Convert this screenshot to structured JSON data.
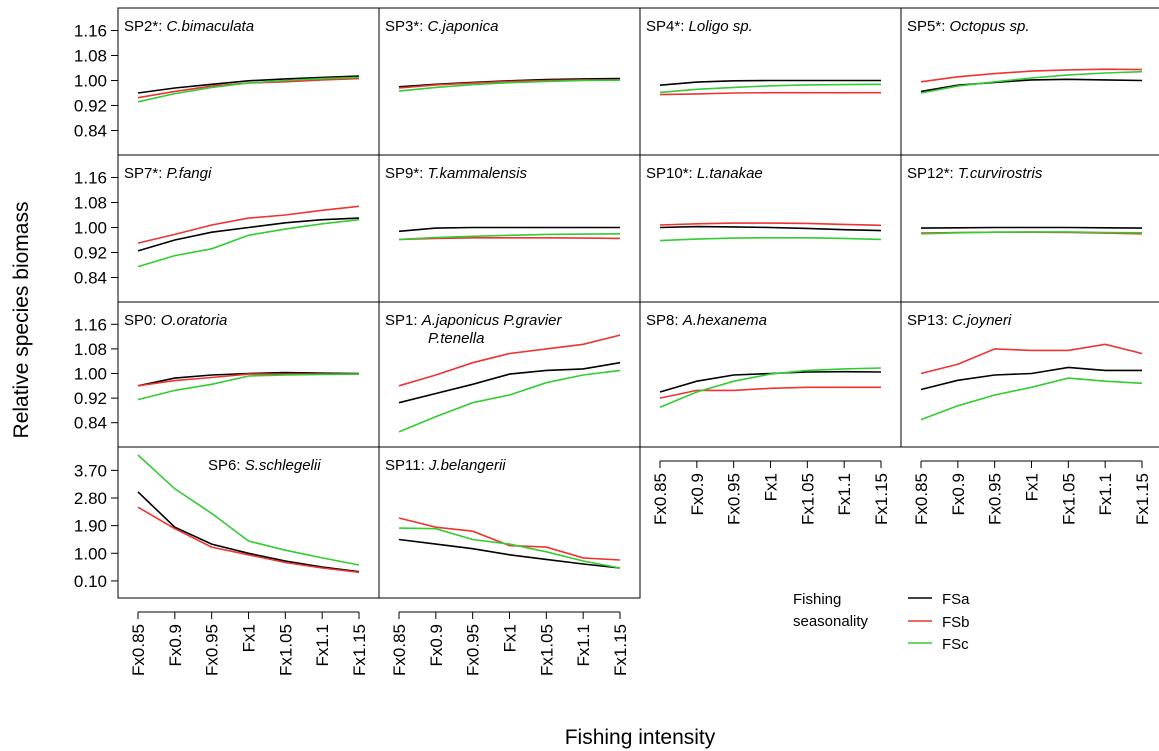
{
  "figure": {
    "ylabel": "Relative species biomass",
    "xlabel": "Fishing intensity",
    "x_categories": [
      "Fx0.85",
      "Fx0.9",
      "Fx0.95",
      "Fx1",
      "Fx1.05",
      "Fx1.1",
      "Fx1.15"
    ],
    "legend": {
      "title_line1": "Fishing",
      "title_line2": "seasonality",
      "items": [
        {
          "name": "FSa",
          "color": "#000000"
        },
        {
          "name": "FSb",
          "color": "#ee3333"
        },
        {
          "name": "FSc",
          "color": "#33cc33"
        }
      ]
    }
  },
  "chart_data": [
    {
      "type": "line",
      "code": "SP2*:",
      "species": "C.bimaculata",
      "ylim": [
        0.8,
        1.2
      ],
      "yticks": [
        "1.16",
        "1.08",
        "1.00",
        "0.92",
        "0.84"
      ],
      "series": [
        {
          "name": "FSa",
          "values": [
            0.96,
            0.976,
            0.988,
            0.999,
            1.005,
            1.01,
            1.014
          ]
        },
        {
          "name": "FSb",
          "values": [
            0.945,
            0.965,
            0.982,
            0.992,
            0.996,
            1.002,
            1.006
          ]
        },
        {
          "name": "FSc",
          "values": [
            0.932,
            0.958,
            0.978,
            0.992,
            1.0,
            1.006,
            1.01
          ]
        }
      ]
    },
    {
      "type": "line",
      "code": "SP3*:",
      "species": "C.japonica",
      "ylim": [
        0.8,
        1.2
      ],
      "yticks": [],
      "series": [
        {
          "name": "FSa",
          "values": [
            0.98,
            0.988,
            0.994,
            0.999,
            1.003,
            1.005,
            1.006
          ]
        },
        {
          "name": "FSb",
          "values": [
            0.976,
            0.986,
            0.992,
            0.997,
            1.0,
            1.002,
            1.002
          ]
        },
        {
          "name": "FSc",
          "values": [
            0.966,
            0.978,
            0.987,
            0.993,
            0.997,
            1.0,
            1.001
          ]
        }
      ]
    },
    {
      "type": "line",
      "code": "SP4*:",
      "species": "Loligo sp.",
      "ylim": [
        0.8,
        1.2
      ],
      "yticks": [],
      "series": [
        {
          "name": "FSa",
          "values": [
            0.985,
            0.995,
            0.999,
            1.0,
            1.0,
            1.0,
            1.0
          ]
        },
        {
          "name": "FSb",
          "values": [
            0.955,
            0.957,
            0.96,
            0.961,
            0.961,
            0.961,
            0.961
          ]
        },
        {
          "name": "FSc",
          "values": [
            0.962,
            0.972,
            0.978,
            0.983,
            0.986,
            0.987,
            0.988
          ]
        }
      ]
    },
    {
      "type": "line",
      "code": "SP5*:",
      "species": "Octopus sp.",
      "ylim": [
        0.8,
        1.2
      ],
      "yticks": [],
      "series": [
        {
          "name": "FSa",
          "values": [
            0.965,
            0.985,
            0.994,
            1.002,
            1.004,
            1.002,
            1.0
          ]
        },
        {
          "name": "FSb",
          "values": [
            0.996,
            1.012,
            1.022,
            1.03,
            1.034,
            1.036,
            1.035
          ]
        },
        {
          "name": "FSc",
          "values": [
            0.96,
            0.982,
            0.996,
            1.008,
            1.018,
            1.024,
            1.028
          ]
        }
      ]
    },
    {
      "type": "line",
      "code": "SP7*:",
      "species": "P.fangi",
      "ylim": [
        0.8,
        1.2
      ],
      "yticks": [
        "1.16",
        "1.08",
        "1.00",
        "0.92",
        "0.84"
      ],
      "series": [
        {
          "name": "FSa",
          "values": [
            0.925,
            0.96,
            0.985,
            1.0,
            1.015,
            1.025,
            1.03
          ]
        },
        {
          "name": "FSb",
          "values": [
            0.95,
            0.978,
            1.008,
            1.03,
            1.04,
            1.055,
            1.068
          ]
        },
        {
          "name": "FSc",
          "values": [
            0.875,
            0.91,
            0.932,
            0.975,
            0.995,
            1.012,
            1.025
          ]
        }
      ]
    },
    {
      "type": "line",
      "code": "SP9*:",
      "species": "T.kammalensis",
      "ylim": [
        0.8,
        1.2
      ],
      "yticks": [],
      "series": [
        {
          "name": "FSa",
          "values": [
            0.988,
            0.998,
            1.0,
            1.0,
            1.0,
            1.0,
            1.0
          ]
        },
        {
          "name": "FSb",
          "values": [
            0.962,
            0.965,
            0.967,
            0.967,
            0.967,
            0.966,
            0.965
          ]
        },
        {
          "name": "FSc",
          "values": [
            0.962,
            0.968,
            0.972,
            0.975,
            0.978,
            0.979,
            0.98
          ]
        }
      ]
    },
    {
      "type": "line",
      "code": "SP10*:",
      "species": "L.tanakae",
      "ylim": [
        0.8,
        1.2
      ],
      "yticks": [],
      "series": [
        {
          "name": "FSa",
          "values": [
            1.0,
            1.003,
            1.002,
            1.0,
            0.997,
            0.993,
            0.99
          ]
        },
        {
          "name": "FSb",
          "values": [
            1.008,
            1.012,
            1.014,
            1.014,
            1.013,
            1.01,
            1.007
          ]
        },
        {
          "name": "FSc",
          "values": [
            0.958,
            0.963,
            0.966,
            0.967,
            0.967,
            0.965,
            0.962
          ]
        }
      ]
    },
    {
      "type": "line",
      "code": "SP12*:",
      "species": "T.curvirostris",
      "ylim": [
        0.8,
        1.2
      ],
      "yticks": [],
      "series": [
        {
          "name": "FSa",
          "values": [
            0.998,
            0.999,
            1.0,
            1.0,
            1.0,
            0.999,
            0.998
          ]
        },
        {
          "name": "FSb",
          "values": [
            0.982,
            0.984,
            0.985,
            0.985,
            0.984,
            0.982,
            0.98
          ]
        },
        {
          "name": "FSc",
          "values": [
            0.98,
            0.983,
            0.985,
            0.986,
            0.986,
            0.984,
            0.983
          ]
        }
      ]
    },
    {
      "type": "line",
      "code": "SP0:",
      "species": "O.oratoria",
      "ylim": [
        0.8,
        1.2
      ],
      "yticks": [
        "1.16",
        "1.08",
        "1.00",
        "0.92",
        "0.84"
      ],
      "series": [
        {
          "name": "FSa",
          "values": [
            0.96,
            0.985,
            0.995,
            1.0,
            1.003,
            1.001,
            1.0
          ]
        },
        {
          "name": "FSb",
          "values": [
            0.96,
            0.977,
            0.987,
            0.998,
            0.998,
            0.998,
            0.998
          ]
        },
        {
          "name": "FSc",
          "values": [
            0.915,
            0.945,
            0.965,
            0.992,
            0.995,
            0.997,
            0.998
          ]
        }
      ]
    },
    {
      "type": "line",
      "code": "SP1:",
      "species": "A.japonicus P.gravier P.tenella",
      "ylim": [
        0.8,
        1.2
      ],
      "yticks": [],
      "series": [
        {
          "name": "FSa",
          "values": [
            0.905,
            0.935,
            0.965,
            0.998,
            1.01,
            1.015,
            1.035
          ]
        },
        {
          "name": "FSb",
          "values": [
            0.96,
            0.995,
            1.035,
            1.065,
            1.08,
            1.095,
            1.125
          ]
        },
        {
          "name": "FSc",
          "values": [
            0.81,
            0.86,
            0.905,
            0.93,
            0.97,
            0.995,
            1.01
          ]
        }
      ]
    },
    {
      "type": "line",
      "code": "SP8:",
      "species": "A.hexanema",
      "ylim": [
        0.8,
        1.2
      ],
      "yticks": [],
      "series": [
        {
          "name": "FSa",
          "values": [
            0.94,
            0.975,
            0.995,
            1.0,
            1.005,
            1.006,
            1.005
          ]
        },
        {
          "name": "FSb",
          "values": [
            0.92,
            0.945,
            0.945,
            0.952,
            0.955,
            0.955,
            0.955
          ]
        },
        {
          "name": "FSc",
          "values": [
            0.89,
            0.94,
            0.975,
            0.998,
            1.01,
            1.015,
            1.018
          ]
        }
      ]
    },
    {
      "type": "line",
      "code": "SP13:",
      "species": "C.joyneri",
      "ylim": [
        0.8,
        1.2
      ],
      "yticks": [],
      "series": [
        {
          "name": "FSa",
          "values": [
            0.948,
            0.978,
            0.995,
            1.0,
            1.02,
            1.01,
            1.01
          ]
        },
        {
          "name": "FSb",
          "values": [
            1.0,
            1.03,
            1.08,
            1.075,
            1.075,
            1.095,
            1.065
          ]
        },
        {
          "name": "FSc",
          "values": [
            0.85,
            0.895,
            0.93,
            0.955,
            0.985,
            0.975,
            0.968
          ]
        }
      ]
    },
    {
      "type": "line",
      "code": "SP6:",
      "species": "S.schlegelii",
      "ylim": [
        0.0,
        4.2
      ],
      "yticks": [
        "3.70",
        "2.80",
        "1.90",
        "1.00",
        "0.10"
      ],
      "series": [
        {
          "name": "FSa",
          "values": [
            3.0,
            1.85,
            1.3,
            1.0,
            0.75,
            0.55,
            0.4
          ]
        },
        {
          "name": "FSb",
          "values": [
            2.5,
            1.8,
            1.2,
            0.95,
            0.7,
            0.52,
            0.38
          ]
        },
        {
          "name": "FSc",
          "values": [
            4.2,
            3.1,
            2.3,
            1.4,
            1.1,
            0.85,
            0.62
          ]
        }
      ]
    },
    {
      "type": "line",
      "code": "SP11:",
      "species": "J.belangerii",
      "ylim": [
        0.0,
        4.2
      ],
      "yticks": [],
      "series": [
        {
          "name": "FSa",
          "values": [
            1.45,
            1.3,
            1.15,
            0.95,
            0.8,
            0.65,
            0.52
          ]
        },
        {
          "name": "FSb",
          "values": [
            2.15,
            1.85,
            1.72,
            1.25,
            1.2,
            0.85,
            0.78
          ]
        },
        {
          "name": "FSc",
          "values": [
            1.82,
            1.8,
            1.45,
            1.3,
            1.05,
            0.75,
            0.52
          ]
        }
      ]
    }
  ]
}
